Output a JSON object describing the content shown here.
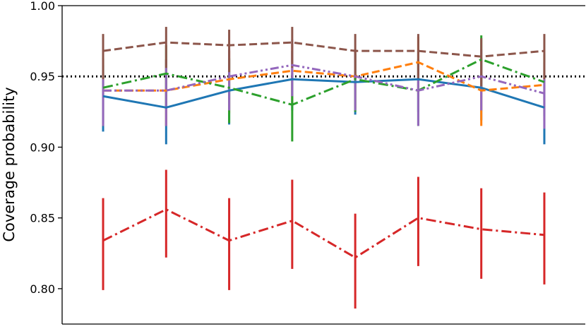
{
  "chart_data": {
    "type": "line",
    "title": "",
    "xlabel": "",
    "ylabel": "Coverage probability",
    "x": [
      1,
      2,
      3,
      4,
      5,
      6,
      7,
      8
    ],
    "xlim": [
      0.35,
      8.65
    ],
    "ylim": [
      0.775,
      1.0
    ],
    "yticks": [
      0.8,
      0.85,
      0.9,
      0.95,
      1.0
    ],
    "ytick_labels": [
      "0.80",
      "0.85",
      "0.90",
      "0.95",
      "1.00"
    ],
    "reference_line": {
      "y": 0.95,
      "style": "dotted",
      "color": "#000000"
    },
    "grid": false,
    "legend": "none",
    "series": [
      {
        "color": "#1f77b4",
        "dash": "solid",
        "values": [
          0.936,
          0.928,
          0.94,
          0.948,
          0.946,
          0.948,
          0.942,
          0.928
        ],
        "lower": [
          0.911,
          0.902,
          0.916,
          0.926,
          0.923,
          0.925,
          0.919,
          0.902
        ],
        "upper": [
          0.958,
          0.952,
          0.962,
          0.968,
          0.966,
          0.968,
          0.963,
          0.952
        ]
      },
      {
        "color": "#ff7f0e",
        "dash": "dashed",
        "values": [
          0.94,
          0.94,
          0.948,
          0.954,
          0.95,
          0.96,
          0.94,
          0.944
        ],
        "lower": [
          0.915,
          0.915,
          0.924,
          0.931,
          0.927,
          0.938,
          0.915,
          0.919
        ],
        "upper": [
          0.962,
          0.962,
          0.968,
          0.973,
          0.969,
          0.978,
          0.962,
          0.965
        ]
      },
      {
        "color": "#2ca02c",
        "dash": "dashdot",
        "values": [
          0.942,
          0.952,
          0.942,
          0.93,
          0.948,
          0.94,
          0.962,
          0.946
        ],
        "lower": [
          0.917,
          0.928,
          0.917,
          0.904,
          0.925,
          0.915,
          0.94,
          0.922
        ],
        "upper": [
          0.963,
          0.972,
          0.963,
          0.952,
          0.967,
          0.962,
          0.979,
          0.966
        ]
      },
      {
        "color": "#d62728",
        "dash": "dashdot",
        "values": [
          0.834,
          0.856,
          0.834,
          0.848,
          0.822,
          0.85,
          0.842,
          0.838
        ],
        "lower": [
          0.799,
          0.822,
          0.799,
          0.814,
          0.786,
          0.816,
          0.807,
          0.803
        ],
        "upper": [
          0.864,
          0.884,
          0.864,
          0.877,
          0.853,
          0.879,
          0.871,
          0.868
        ]
      },
      {
        "color": "#9467bd",
        "dash": "dashdotdot",
        "values": [
          0.94,
          0.94,
          0.95,
          0.958,
          0.95,
          0.94,
          0.95,
          0.938
        ],
        "lower": [
          0.915,
          0.915,
          0.926,
          0.936,
          0.926,
          0.915,
          0.926,
          0.913
        ],
        "upper": [
          0.962,
          0.962,
          0.969,
          0.976,
          0.969,
          0.962,
          0.969,
          0.96
        ]
      },
      {
        "color": "#8c564b",
        "dash": "dashed",
        "values": [
          0.968,
          0.974,
          0.972,
          0.974,
          0.968,
          0.968,
          0.964,
          0.968
        ],
        "lower": [
          0.948,
          0.956,
          0.953,
          0.956,
          0.948,
          0.948,
          0.943,
          0.948
        ],
        "upper": [
          0.98,
          0.985,
          0.983,
          0.985,
          0.98,
          0.98,
          0.977,
          0.98
        ]
      }
    ]
  }
}
